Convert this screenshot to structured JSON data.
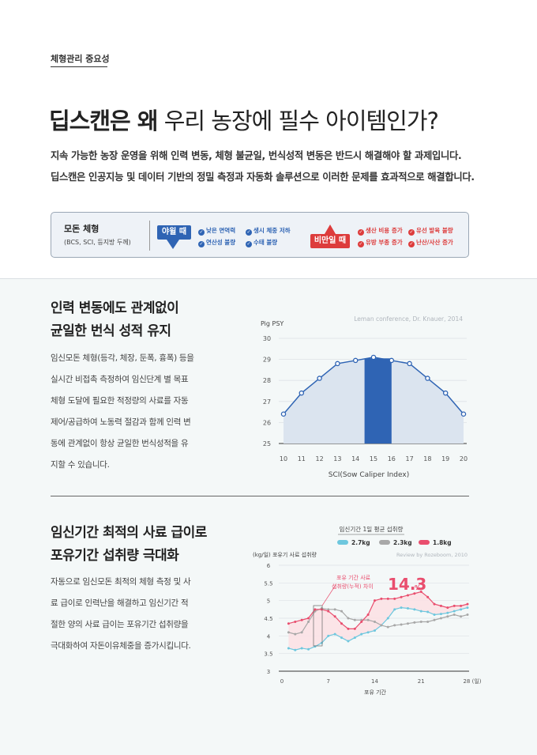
{
  "header": {
    "section_tag": "체형관리 중요성",
    "headline_bold": "딥스캔은 왜",
    "headline_rest": "우리 농장에 필수 아이템인가?",
    "intro_lines": [
      "지속 가능한 농장 운영을 위해 인력 변동, 체형 불균일, 번식성적 변동은 반드시 해결해야 할 과제입니다.",
      "딥스캔은 인공지능 및 데이터 기반의 정밀 측정과 자동화 솔루션으로 이러한 문제를 효과적으로 해결합니다."
    ]
  },
  "panel": {
    "title": "모돈 체형",
    "subtitle": "(BCS, SCI, 등지방 두께)",
    "low_label": "야윌 때",
    "low_items": [
      "낮은 면역력",
      "생시 체중 저하",
      "연산성 불량",
      "수태 불량"
    ],
    "high_label": "비만일 때",
    "high_items": [
      "생산 비용 증가",
      "유선 발육 불량",
      "유방 부종 증가",
      "난산/사산 증가"
    ],
    "colors": {
      "low": "#2f64b4",
      "high": "#dd3c3c"
    }
  },
  "section1": {
    "title_lines": [
      "인력 변동에도 관계없이",
      "균일한 번식 성적 유지"
    ],
    "body_lines": [
      "임신모돈 체형(등각, 체장, 둔폭, 흉폭) 등을",
      "실시간 비접촉 측정하여 임신단계 별 목표",
      "체형 도달에 필요한 적정량의 사료를 자동",
      "제어/공급하여 노동력 절감과 함께 인력 변",
      "동에 관계없이 항상 균일한 번식성적을 유",
      "지할 수 있습니다."
    ]
  },
  "section2": {
    "title_lines": [
      "임신기간 최적의 사료 급이로",
      "포유기간 섭취량 극대화"
    ],
    "body_lines": [
      "자동으로 임신모돈 최적의 체형 측정 및 사",
      "료 급이로 인력난을 해결하고 임신기간 적",
      "절한 양의 사료 급이는 포유기간 섭취량을",
      "극대화하여 자돈이유체중을 증가시킵니다."
    ]
  },
  "chart_data": [
    {
      "type": "line",
      "ylabel": "Pig  PSY",
      "xlabel": "SCI(Sow Caliper Index)",
      "source": "Leman conference, Dr. Knauer, 2014",
      "x": [
        10,
        11,
        12,
        13,
        14,
        15,
        16,
        17,
        18,
        19,
        20
      ],
      "x_ticks": [
        "10",
        "11",
        "12",
        "13",
        "14",
        "15",
        "16",
        "17",
        "18",
        "19",
        "20"
      ],
      "y_ticks": [
        "25",
        "26",
        "27",
        "28",
        "29",
        "30"
      ],
      "ylim": [
        25,
        30
      ],
      "values": [
        26.4,
        27.4,
        28.1,
        28.8,
        28.95,
        29.1,
        28.95,
        28.8,
        28.1,
        27.4,
        26.4
      ],
      "highlight_range": [
        14.5,
        16
      ],
      "colors": {
        "line": "#2f64b4",
        "fill": "#dbe4ef",
        "highlight": "#2f64b4"
      },
      "grid": true
    },
    {
      "type": "line",
      "title": "임신기간 1일 평균 섭취량",
      "ylabel": "(kg/일)  포유기 사료 섭취량",
      "xlabel": "포유 기간",
      "source": "Review by Rozeboom, 2010",
      "x_ticks": [
        "0",
        "7",
        "14",
        "21",
        "28 (일)"
      ],
      "x_tick_values": [
        0,
        7,
        14,
        21,
        28
      ],
      "y_ticks": [
        "3",
        "3.5",
        "4",
        "4.5",
        "5",
        "5.5",
        "6"
      ],
      "ylim": [
        3,
        6
      ],
      "xlim": [
        0,
        28
      ],
      "annotation_text_lines": [
        "포유 기간 사료",
        "섭취량(누적) 차이"
      ],
      "annotation_value": "14.3",
      "annotation_unit": "%",
      "series": [
        {
          "name": "2.7kg",
          "color": "#6ec7de",
          "x": [
            1,
            2,
            3,
            4,
            5,
            6,
            7,
            8,
            9,
            10,
            11,
            12,
            13,
            14,
            15,
            16,
            17,
            18,
            19,
            20,
            21,
            22,
            23,
            24,
            25,
            26,
            27,
            28
          ],
          "values": [
            3.65,
            3.6,
            3.65,
            3.62,
            3.7,
            3.8,
            4.0,
            4.05,
            3.95,
            3.85,
            3.95,
            4.05,
            4.1,
            4.15,
            4.3,
            4.5,
            4.75,
            4.8,
            4.78,
            4.75,
            4.7,
            4.68,
            4.6,
            4.62,
            4.65,
            4.7,
            4.75,
            4.8
          ]
        },
        {
          "name": "2.3kg",
          "color": "#a8a8a8",
          "x": [
            1,
            2,
            3,
            4,
            5,
            6,
            7,
            8,
            9,
            10,
            11,
            12,
            13,
            14,
            15,
            16,
            17,
            18,
            19,
            20,
            21,
            22,
            23,
            24,
            25,
            26,
            27,
            28
          ],
          "values": [
            4.1,
            4.05,
            4.1,
            4.4,
            4.7,
            4.78,
            4.75,
            4.75,
            4.7,
            4.5,
            4.45,
            4.45,
            4.45,
            4.4,
            4.3,
            4.25,
            4.3,
            4.32,
            4.35,
            4.38,
            4.4,
            4.4,
            4.45,
            4.5,
            4.55,
            4.6,
            4.55,
            4.6
          ]
        },
        {
          "name": "1.8kg",
          "color": "#e94e6e",
          "x": [
            1,
            2,
            3,
            4,
            5,
            6,
            7,
            8,
            9,
            10,
            11,
            12,
            13,
            14,
            15,
            16,
            17,
            18,
            19,
            20,
            21,
            22,
            23,
            24,
            25,
            26,
            27,
            28
          ],
          "values": [
            4.35,
            4.4,
            4.45,
            4.5,
            4.75,
            4.75,
            4.7,
            4.55,
            4.35,
            4.2,
            4.2,
            4.4,
            4.6,
            5.0,
            5.05,
            5.05,
            5.05,
            5.1,
            5.15,
            5.2,
            5.25,
            5.1,
            4.9,
            4.85,
            4.8,
            4.85,
            4.85,
            4.9
          ]
        }
      ],
      "grid": true
    }
  ]
}
